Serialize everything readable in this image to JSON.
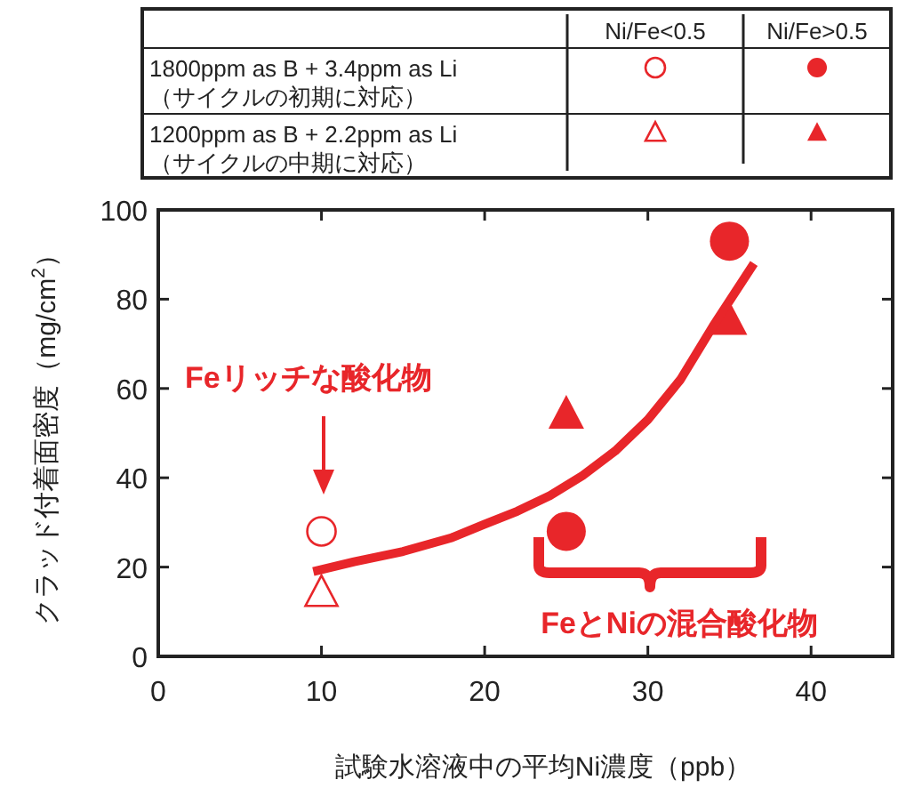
{
  "chart_data": {
    "type": "scatter",
    "xlabel": "試験水溶液中の平均Ni濃度（ppb）",
    "ylabel": "クラッド付着面密度（mg/cm$^{2}$）",
    "xlim": [
      0,
      45
    ],
    "xticks": [
      0,
      10,
      20,
      30,
      40
    ],
    "ylim": [
      0,
      100
    ],
    "yticks": [
      0,
      20,
      40,
      60,
      80,
      100
    ],
    "grid": false,
    "series": [
      {
        "color": "#e8262a",
        "marker": "circle",
        "x": [
          10
        ],
        "values": [
          28
        ]
      },
      {
        "color": "#e8262a",
        "marker": "circle",
        "x": [
          25,
          35
        ],
        "values": [
          28,
          93
        ]
      },
      {
        "color": "#e8262a",
        "marker": "triangle",
        "x": [
          10
        ],
        "values": [
          14
        ]
      },
      {
        "color": "#e8262a",
        "marker": "triangle",
        "x": [
          25,
          35
        ],
        "values": [
          54,
          75
        ]
      },
      {
        "type": "line",
        "color": "#e8262a",
        "marker": "none",
        "x": [
          9.5,
          12,
          15,
          18,
          20,
          22,
          24,
          26,
          28,
          30,
          32,
          34,
          36.5
        ],
        "values": [
          19,
          21.2,
          23.5,
          26.6,
          29.6,
          32.5,
          36,
          40.5,
          46,
          53,
          62,
          74,
          88
        ]
      }
    ],
    "annotations": [
      "Ni/Fe<0.5",
      "Ni/Fe>0.5",
      "1800ppm as B + 3.4ppm as Li",
      "（サイクルの初期に対応）",
      "1200ppm as B + 2.2ppm as Li",
      "（サイクルの中期に対応）",
      "Feリッチな酸化物",
      "FeとNiの混合酸化物"
    ]
  }
}
